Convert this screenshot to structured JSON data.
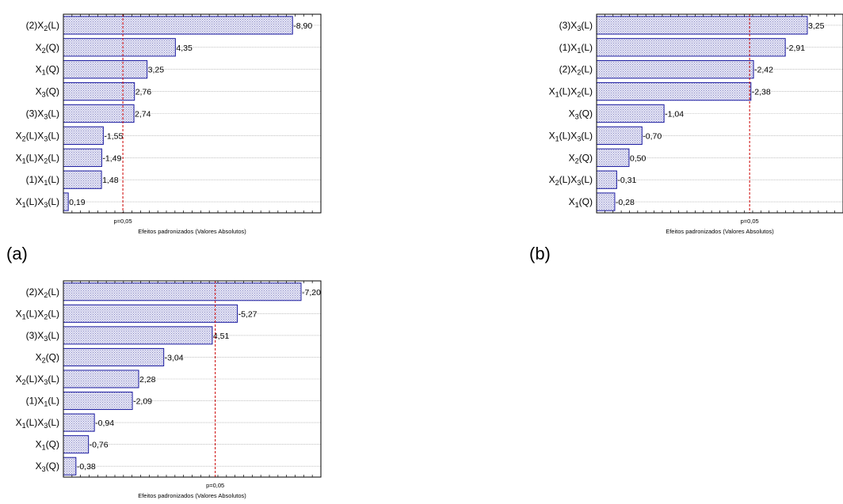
{
  "page": {
    "letters": [
      "(a)",
      "(b)"
    ]
  },
  "style": {
    "bar_fill": "#c8c8e8",
    "bar_stroke": "#1a1aa0",
    "threshold_color": "#cc0000",
    "grid_color": "#9a9a9a"
  },
  "chart_data": [
    {
      "id": "a",
      "type": "bar",
      "orientation": "horizontal",
      "title": "",
      "xlabel": "Efeitos padronizados (Valores Absolutos)",
      "ylabel": "",
      "xlim": [
        0,
        10
      ],
      "threshold": {
        "value": 2.31,
        "label": "p=0,05"
      },
      "categories": [
        [
          {
            "t": "(2)X"
          },
          {
            "t": "2",
            "sub": true
          },
          {
            "t": "(L)"
          }
        ],
        [
          {
            "t": "X"
          },
          {
            "t": "2",
            "sub": true
          },
          {
            "t": "(Q)"
          }
        ],
        [
          {
            "t": "X"
          },
          {
            "t": "1",
            "sub": true
          },
          {
            "t": "(Q)"
          }
        ],
        [
          {
            "t": "X"
          },
          {
            "t": "3",
            "sub": true
          },
          {
            "t": "(Q)"
          }
        ],
        [
          {
            "t": "(3)X"
          },
          {
            "t": "3",
            "sub": true
          },
          {
            "t": "(L)"
          }
        ],
        [
          {
            "t": "X"
          },
          {
            "t": "2",
            "sub": true
          },
          {
            "t": "(L)X"
          },
          {
            "t": "3",
            "sub": true
          },
          {
            "t": "(L)"
          }
        ],
        [
          {
            "t": "X"
          },
          {
            "t": "1",
            "sub": true
          },
          {
            "t": "(L)X"
          },
          {
            "t": "2",
            "sub": true
          },
          {
            "t": "(L)"
          }
        ],
        [
          {
            "t": "(1)X"
          },
          {
            "t": "1",
            "sub": true
          },
          {
            "t": "(L)"
          }
        ],
        [
          {
            "t": "X"
          },
          {
            "t": "1",
            "sub": true
          },
          {
            "t": "(L)X"
          },
          {
            "t": "3",
            "sub": true
          },
          {
            "t": "(L)"
          }
        ]
      ],
      "values": [
        8.9,
        4.35,
        3.25,
        2.76,
        2.74,
        1.55,
        1.49,
        1.48,
        0.19
      ],
      "value_labels": [
        "-8,90",
        "4,35",
        "3,25",
        "2,76",
        "2,74",
        "-1,55",
        "-1,49",
        "1,48",
        "0,19"
      ],
      "grid": true
    },
    {
      "id": "b",
      "type": "bar",
      "orientation": "horizontal",
      "title": "",
      "xlabel": "Efeitos padronizados (Valores Absolutos)",
      "ylabel": "",
      "xlim": [
        0,
        3.8
      ],
      "threshold": {
        "value": 2.36,
        "label": "p=0,05"
      },
      "categories": [
        [
          {
            "t": "(3)X"
          },
          {
            "t": "3",
            "sub": true
          },
          {
            "t": "(L)"
          }
        ],
        [
          {
            "t": "(1)X"
          },
          {
            "t": "1",
            "sub": true
          },
          {
            "t": "(L)"
          }
        ],
        [
          {
            "t": "(2)X"
          },
          {
            "t": "2",
            "sub": true
          },
          {
            "t": "(L)"
          }
        ],
        [
          {
            "t": "X"
          },
          {
            "t": "1",
            "sub": true
          },
          {
            "t": "(L)X"
          },
          {
            "t": "2",
            "sub": true
          },
          {
            "t": "(L)"
          }
        ],
        [
          {
            "t": "X"
          },
          {
            "t": "3",
            "sub": true
          },
          {
            "t": "(Q)"
          }
        ],
        [
          {
            "t": "X"
          },
          {
            "t": "1",
            "sub": true
          },
          {
            "t": "(L)X"
          },
          {
            "t": "3",
            "sub": true
          },
          {
            "t": "(L)"
          }
        ],
        [
          {
            "t": "X"
          },
          {
            "t": "2",
            "sub": true
          },
          {
            "t": "(Q)"
          }
        ],
        [
          {
            "t": "X"
          },
          {
            "t": "2",
            "sub": true
          },
          {
            "t": "(L)X"
          },
          {
            "t": "3",
            "sub": true
          },
          {
            "t": "(L)"
          }
        ],
        [
          {
            "t": "X"
          },
          {
            "t": "1",
            "sub": true
          },
          {
            "t": "(Q)"
          }
        ]
      ],
      "values": [
        3.25,
        2.91,
        2.42,
        2.38,
        1.04,
        0.7,
        0.5,
        0.31,
        0.28
      ],
      "value_labels": [
        "3,25",
        "-2,91",
        "-2,42",
        "-2,38",
        "-1,04",
        "-0,70",
        "0,50",
        "-0,31",
        "-0,28"
      ],
      "grid": true
    },
    {
      "id": "c",
      "type": "bar",
      "orientation": "horizontal",
      "title": "",
      "xlabel": "Efeitos padronizados (Valores Absolutos)",
      "ylabel": "",
      "xlim": [
        0,
        7.8
      ],
      "threshold": {
        "value": 4.6,
        "label": "p=0,05"
      },
      "categories": [
        [
          {
            "t": "(2)X"
          },
          {
            "t": "2",
            "sub": true
          },
          {
            "t": "(L)"
          }
        ],
        [
          {
            "t": "X"
          },
          {
            "t": "1",
            "sub": true
          },
          {
            "t": "(L)X"
          },
          {
            "t": "2",
            "sub": true
          },
          {
            "t": "(L)"
          }
        ],
        [
          {
            "t": "(3)X"
          },
          {
            "t": "3",
            "sub": true
          },
          {
            "t": "(L)"
          }
        ],
        [
          {
            "t": "X"
          },
          {
            "t": "2",
            "sub": true
          },
          {
            "t": "(Q)"
          }
        ],
        [
          {
            "t": "X"
          },
          {
            "t": "2",
            "sub": true
          },
          {
            "t": "(L)X"
          },
          {
            "t": "3",
            "sub": true
          },
          {
            "t": "(L)"
          }
        ],
        [
          {
            "t": "(1)X"
          },
          {
            "t": "1",
            "sub": true
          },
          {
            "t": "(L)"
          }
        ],
        [
          {
            "t": "X"
          },
          {
            "t": "1",
            "sub": true
          },
          {
            "t": "(L)X"
          },
          {
            "t": "3",
            "sub": true
          },
          {
            "t": "(L)"
          }
        ],
        [
          {
            "t": "X"
          },
          {
            "t": "1",
            "sub": true
          },
          {
            "t": "(Q)"
          }
        ],
        [
          {
            "t": "X"
          },
          {
            "t": "3",
            "sub": true
          },
          {
            "t": "(Q)"
          }
        ]
      ],
      "values": [
        7.2,
        5.27,
        4.51,
        3.04,
        2.28,
        2.09,
        0.94,
        0.76,
        0.38
      ],
      "value_labels": [
        "-7,20",
        "-5,27",
        "4,51",
        "-3,04",
        "2,28",
        "-2,09",
        "-0,94",
        "-0,76",
        "-0,38"
      ],
      "grid": true
    }
  ]
}
